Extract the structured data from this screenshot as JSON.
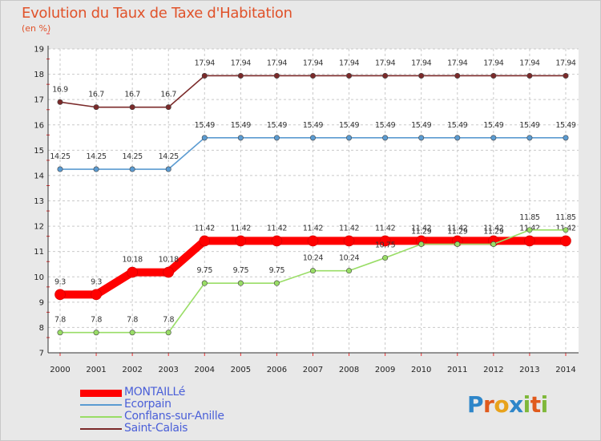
{
  "header": {
    "title": "Evolution du Taux de Taxe d'Habitation",
    "subtitle": "(en %)"
  },
  "logo": {
    "letters": [
      "P",
      "r",
      "o",
      "x",
      "i",
      "t",
      "i"
    ]
  },
  "chart_data": {
    "type": "line",
    "title": "Evolution du Taux de Taxe d'Habitation",
    "ylabel": "(en %)",
    "xlabel": "",
    "ylim": [
      7,
      19
    ],
    "yticks": [
      "7",
      "8",
      "9",
      "10",
      "11",
      "12",
      "13",
      "14",
      "15",
      "16",
      "17",
      "18",
      "19"
    ],
    "grid": true,
    "x": [
      "2000",
      "2001",
      "2002",
      "2003",
      "2004",
      "2005",
      "2006",
      "2007",
      "2008",
      "2009",
      "2010",
      "2011",
      "2012",
      "2013",
      "2014"
    ],
    "series": [
      {
        "name": "Saint-Calais",
        "color": "#7b2a2a",
        "values": [
          16.9,
          16.7,
          16.7,
          16.7,
          17.94,
          17.94,
          17.94,
          17.94,
          17.94,
          17.94,
          17.94,
          17.94,
          17.94,
          17.94,
          17.94
        ],
        "labels": [
          "16.9",
          "16.7",
          "16.7",
          "16.7",
          "17.94",
          "17.94",
          "17.94",
          "17.94",
          "17.94",
          "17.94",
          "17.94",
          "17.94",
          "17.94",
          "17.94",
          "17.94"
        ]
      },
      {
        "name": "Ecorpain",
        "color": "#5b9bd1",
        "values": [
          14.25,
          14.25,
          14.25,
          14.25,
          15.49,
          15.49,
          15.49,
          15.49,
          15.49,
          15.49,
          15.49,
          15.49,
          15.49,
          15.49,
          15.49
        ],
        "labels": [
          "14.25",
          "14.25",
          "14.25",
          "14.25",
          "15.49",
          "15.49",
          "15.49",
          "15.49",
          "15.49",
          "15.49",
          "15.49",
          "15.49",
          "15.49",
          "15.49",
          "15.49"
        ]
      },
      {
        "name": "MONTAILLé",
        "color": "#ff0000",
        "values": [
          9.3,
          9.3,
          10.18,
          10.18,
          11.42,
          11.42,
          11.42,
          11.42,
          11.42,
          11.42,
          11.42,
          11.42,
          11.42,
          11.42,
          11.42
        ],
        "labels": [
          "9.3",
          "9.3",
          "10.18",
          "10.18",
          "11.42",
          "11.42",
          "11.42",
          "11.42",
          "11.42",
          "11.42",
          "11.42",
          "11.42",
          "11.42",
          "11.42",
          "11.42"
        ]
      },
      {
        "name": "Conflans-sur-Anille",
        "color": "#99dd66",
        "values": [
          7.8,
          7.8,
          7.8,
          7.8,
          9.75,
          9.75,
          9.75,
          10.24,
          10.24,
          10.75,
          11.29,
          11.29,
          11.29,
          11.85,
          11.85
        ],
        "labels": [
          "7.8",
          "7.8",
          "7.8",
          "7.8",
          "9.75",
          "9.75",
          "9.75",
          "10.24",
          "10.24",
          "10.75",
          "11.29",
          "11.29",
          "11.29",
          "11.85",
          "11.85"
        ]
      }
    ],
    "legend": [
      {
        "name": "MONTAILLé",
        "color": "#ff0000"
      },
      {
        "name": "Ecorpain",
        "color": "#5b9bd1"
      },
      {
        "name": "Conflans-sur-Anille",
        "color": "#99dd66"
      },
      {
        "name": "Saint-Calais",
        "color": "#7b2a2a"
      }
    ],
    "legend_position": "bottom-left"
  }
}
